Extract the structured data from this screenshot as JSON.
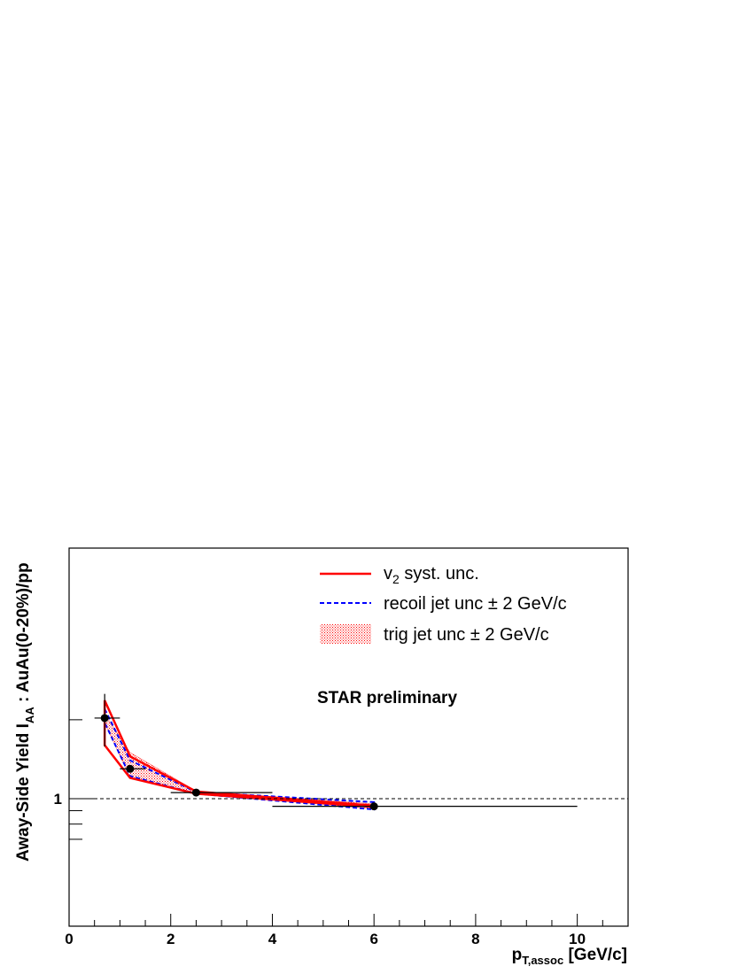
{
  "chart_data": {
    "type": "scatter",
    "xlabel_main": "p",
    "xlabel_sub": "T,assoc",
    "xlabel_unit": " [GeV/c]",
    "ylabel_main": "Away-Side Yield I",
    "ylabel_sub": "AA",
    "ylabel_rest": " : AuAu(0-20%)/pp",
    "xlim": [
      0,
      11
    ],
    "ylim": [
      0.7,
      2.6
    ],
    "y_log_scale": true,
    "x_ticks": [
      0,
      2,
      4,
      6,
      8,
      10
    ],
    "x_tick_labels": [
      "0",
      "2",
      "4",
      "6",
      "8",
      "10"
    ],
    "y_tick_labels": [
      {
        "value": 1,
        "label": "1"
      }
    ],
    "reference_line": {
      "y": 1,
      "style": "dashed"
    },
    "annotation": "STAR preliminary",
    "legend": {
      "placement": "top-right",
      "entries": [
        {
          "label_main": "v",
          "label_sub": "2",
          "label_rest": " syst. unc.",
          "style": "solid-line",
          "color": "#ff0000"
        },
        {
          "label": "recoil jet unc ± 2 GeV/c",
          "style": "dashed-line",
          "color": "#0000ff"
        },
        {
          "label": "trig jet unc ± 2 GeV/c",
          "style": "hatched-box",
          "color": "#ff0000"
        }
      ]
    },
    "points": [
      {
        "x": 0.7,
        "y": 2.03,
        "xerr": [
          0.2,
          0.3
        ],
        "yerr": [
          0.45,
          0.48
        ]
      },
      {
        "x": 1.2,
        "y": 1.3,
        "xerr": [
          0.2,
          0.3
        ]
      },
      {
        "x": 2.5,
        "y": 1.055,
        "xerr": [
          0.5,
          1.5
        ]
      },
      {
        "x": 6.0,
        "y": 0.935,
        "xerr": [
          2.0,
          4.0
        ]
      }
    ],
    "v2_band": {
      "x": [
        0.7,
        1.2,
        2.5,
        6.0
      ],
      "upper": [
        2.37,
        1.45,
        1.065,
        0.94
      ],
      "lower": [
        1.6,
        1.2,
        1.045,
        0.93
      ]
    },
    "recoil_band": {
      "x": [
        0.7,
        1.2,
        2.5,
        6.0
      ],
      "upper": [
        2.2,
        1.4,
        1.06,
        0.97
      ],
      "lower": [
        1.95,
        1.22,
        1.045,
        0.91
      ]
    },
    "trig_band": {
      "x": [
        0.7,
        1.2,
        2.5,
        6.0
      ],
      "upper": [
        2.1,
        1.5,
        1.07,
        0.955
      ],
      "lower": [
        1.95,
        1.2,
        1.045,
        0.915
      ]
    },
    "colors": {
      "v2": "#ff0000",
      "recoil": "#0000ff",
      "trig": "#ff0000",
      "points": "#000000"
    }
  }
}
